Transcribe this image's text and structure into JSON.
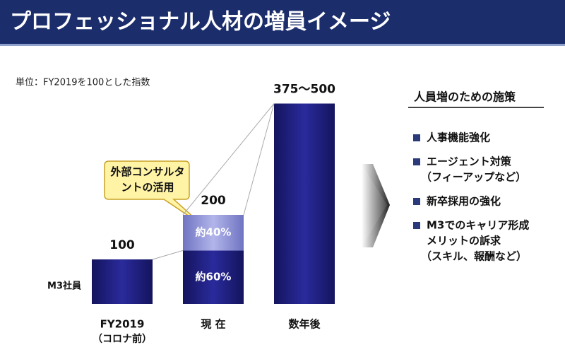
{
  "header": {
    "title": "プロフェッショナル人材の増員イメージ"
  },
  "chart_data": {
    "type": "bar",
    "subtitle": "単位：FY2019を100とした指数",
    "categories": [
      "FY2019",
      "現 在",
      "数年後"
    ],
    "category_sublabels": [
      "（コロナ前）",
      null,
      null
    ],
    "series": [
      {
        "name": "M3社員",
        "color": "#1f1f7a",
        "values": [
          100,
          120,
          450
        ]
      },
      {
        "name": "外部コンサルタントの活用",
        "color": "#8f93d6",
        "values": [
          null,
          80,
          null
        ]
      }
    ],
    "share_labels": [
      [
        null,
        "約60%",
        null
      ],
      [
        null,
        "約40%",
        null
      ]
    ],
    "total_labels": [
      "100",
      "200",
      "375～500"
    ],
    "ylim": [
      0,
      500
    ]
  },
  "measures": {
    "title": "人員増のための施策",
    "items": [
      [
        "人事機能強化"
      ],
      [
        "エージェント対策",
        "（フィーアップなど）"
      ],
      [
        "新卒採用の強化"
      ],
      [
        "M3でのキャリア形成",
        "メリットの訴求",
        "（スキル、報酬など）"
      ]
    ]
  }
}
